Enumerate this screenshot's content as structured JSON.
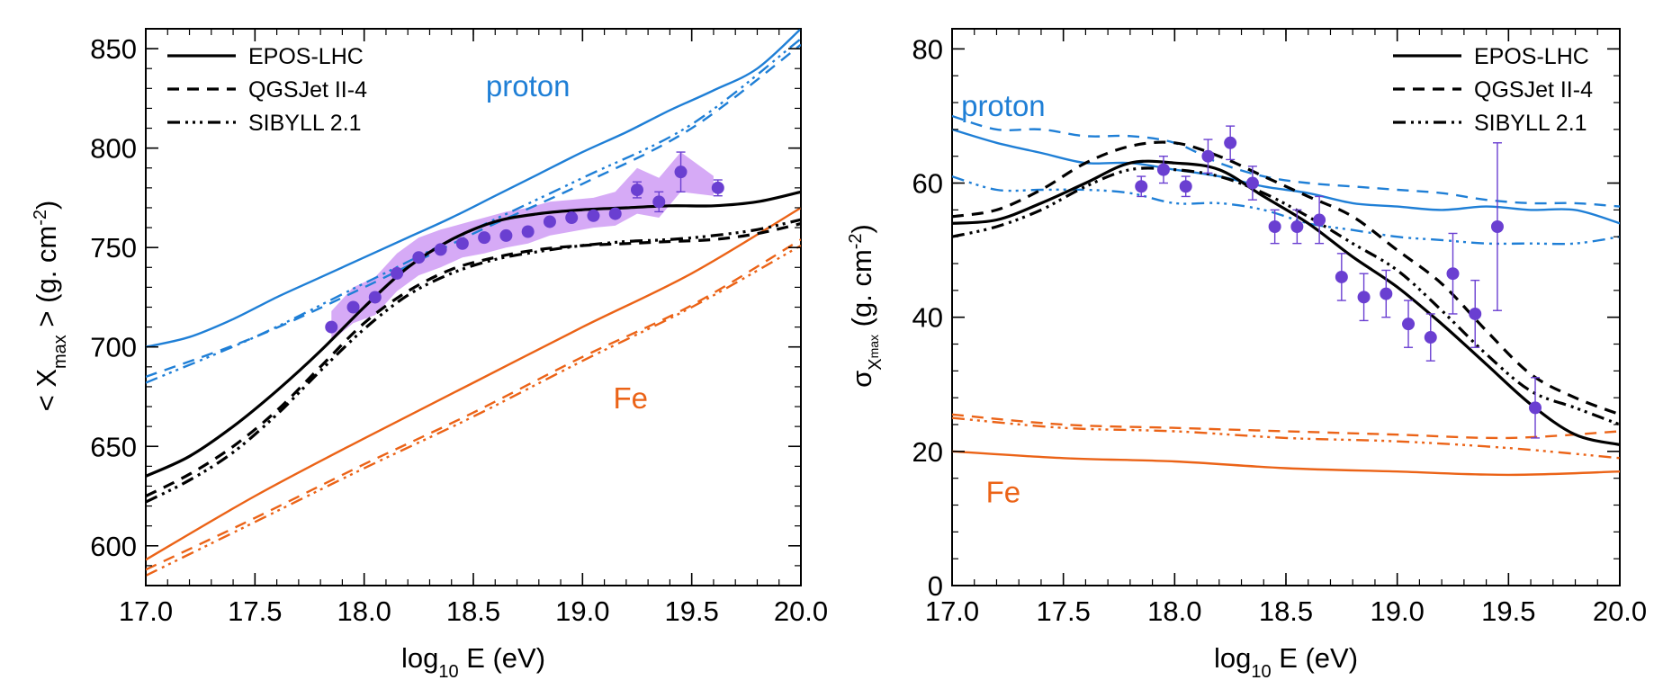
{
  "colors": {
    "proton": "#1f7fd6",
    "fe": "#eb6317",
    "data": "#6a3fd1",
    "band": "#cf9bf5",
    "model": "#000000"
  },
  "chart_data": [
    {
      "type": "line",
      "name": "mean-xmax",
      "xlabel": {
        "pre": "log",
        "sub": "10",
        "post": " E (eV)"
      },
      "ylabel": {
        "pre": "< X",
        "sub": "max",
        "mid": " > (g. cm",
        "sup": "-2",
        "post": ")"
      },
      "xlim": [
        17.0,
        20.0
      ],
      "ylim": [
        580,
        860
      ],
      "xticks": [
        17.0,
        17.5,
        18.0,
        18.5,
        19.0,
        19.5,
        20.0
      ],
      "xtick_labels": [
        "17.0",
        "17.5",
        "18.0",
        "18.5",
        "19.0",
        "19.5",
        "20.0"
      ],
      "yticks": [
        600,
        650,
        700,
        750,
        800,
        850
      ],
      "ytick_labels": [
        "600",
        "650",
        "700",
        "750",
        "800",
        "850"
      ],
      "legend": {
        "position": "top-left",
        "entries": [
          {
            "label": "EPOS-LHC",
            "style": "solid"
          },
          {
            "label": "QGSJet II-4",
            "style": "dashed"
          },
          {
            "label": "SIBYLL 2.1",
            "style": "dashdotdotdot"
          }
        ]
      },
      "annotations": [
        {
          "text": "proton",
          "x": 18.75,
          "y": 826,
          "color": "proton"
        },
        {
          "text": "Fe",
          "x": 19.22,
          "y": 669,
          "color": "fe"
        }
      ],
      "series": [
        {
          "name": "proton EPOS-LHC",
          "color": "proton",
          "style": "solid",
          "x": [
            17.0,
            17.2,
            17.4,
            17.6,
            17.8,
            18.0,
            18.2,
            18.4,
            18.6,
            18.8,
            19.0,
            19.2,
            19.4,
            19.6,
            19.8,
            20.0
          ],
          "y": [
            700,
            705,
            714,
            725,
            735,
            745,
            755,
            765,
            776,
            787,
            798,
            808,
            819,
            829,
            840,
            860
          ]
        },
        {
          "name": "proton QGSJet II-4",
          "color": "proton",
          "style": "dashed",
          "x": [
            17.0,
            17.5,
            18.0,
            18.5,
            19.0,
            19.5,
            20.0
          ],
          "y": [
            685,
            705,
            730,
            757,
            782,
            810,
            852
          ]
        },
        {
          "name": "proton SIBYLL 2.1",
          "color": "proton",
          "style": "dashdotdotdot",
          "x": [
            17.0,
            17.5,
            18.0,
            18.5,
            19.0,
            19.5,
            20.0
          ],
          "y": [
            682,
            705,
            732,
            759,
            785,
            812,
            855
          ]
        },
        {
          "name": "Fe EPOS-LHC",
          "color": "fe",
          "style": "solid",
          "x": [
            17.0,
            17.5,
            18.0,
            18.5,
            19.0,
            19.5,
            20.0
          ],
          "y": [
            593,
            625,
            654,
            682,
            710,
            737,
            770
          ]
        },
        {
          "name": "Fe QGSJet II-4",
          "color": "fe",
          "style": "dashed",
          "x": [
            17.0,
            17.5,
            18.0,
            18.5,
            19.0,
            19.5,
            20.0
          ],
          "y": [
            588,
            614,
            641,
            667,
            695,
            721,
            754
          ]
        },
        {
          "name": "Fe SIBYLL 2.1",
          "color": "fe",
          "style": "dashdotdotdot",
          "x": [
            17.0,
            17.5,
            18.0,
            18.5,
            19.0,
            19.5,
            20.0
          ],
          "y": [
            585,
            612,
            639,
            665,
            693,
            720,
            751
          ]
        },
        {
          "name": "EPOS-LHC",
          "color": "model",
          "style": "solid",
          "x": [
            17.0,
            17.2,
            17.4,
            17.6,
            17.8,
            18.0,
            18.2,
            18.4,
            18.6,
            18.8,
            19.0,
            19.2,
            19.4,
            19.6,
            19.8,
            20.0
          ],
          "y": [
            635,
            645,
            660,
            678,
            698,
            720,
            740,
            754,
            763,
            767,
            769,
            770,
            771,
            771,
            773,
            778
          ]
        },
        {
          "name": "QGSJet II-4",
          "color": "model",
          "style": "dashed",
          "x": [
            17.0,
            17.2,
            17.4,
            17.6,
            17.8,
            18.0,
            18.2,
            18.4,
            18.6,
            18.8,
            19.0,
            19.2,
            19.4,
            19.6,
            19.8,
            20.0
          ],
          "y": [
            625,
            636,
            650,
            668,
            690,
            712,
            728,
            739,
            745,
            749,
            751,
            752,
            753,
            754,
            757,
            762
          ]
        },
        {
          "name": "SIBYLL 2.1",
          "color": "model",
          "style": "dashdotdotdot",
          "x": [
            17.0,
            17.2,
            17.4,
            17.6,
            17.8,
            18.0,
            18.2,
            18.4,
            18.6,
            18.8,
            19.0,
            19.2,
            19.4,
            19.6,
            19.8,
            20.0
          ],
          "y": [
            622,
            633,
            647,
            666,
            688,
            709,
            726,
            737,
            744,
            748,
            751,
            753,
            754,
            756,
            759,
            764
          ]
        }
      ],
      "band": {
        "x": [
          17.85,
          17.95,
          18.05,
          18.15,
          18.25,
          18.35,
          18.45,
          18.55,
          18.65,
          18.75,
          18.85,
          18.95,
          19.05,
          19.15,
          19.25,
          19.35,
          19.45,
          19.6
        ],
        "lower": [
          703,
          712,
          716,
          728,
          736,
          740,
          745,
          747,
          750,
          752,
          756,
          758,
          760,
          761,
          767,
          765,
          778,
          776
        ],
        "upper": [
          718,
          730,
          735,
          747,
          755,
          759,
          762,
          765,
          768,
          770,
          773,
          774,
          775,
          778,
          790,
          785,
          798,
          786
        ]
      },
      "data_points": {
        "x": [
          17.85,
          17.95,
          18.05,
          18.15,
          18.25,
          18.35,
          18.45,
          18.55,
          18.65,
          18.75,
          18.85,
          18.95,
          19.05,
          19.15,
          19.25,
          19.35,
          19.45,
          19.62
        ],
        "y": [
          710,
          720,
          725,
          737,
          745,
          749,
          752,
          755,
          756,
          758,
          763,
          765,
          766,
          767,
          779,
          773,
          788,
          780
        ],
        "err": [
          1.5,
          1.5,
          1.5,
          1.5,
          1.5,
          1.5,
          1.5,
          1.5,
          1.5,
          1.5,
          1.5,
          1.5,
          2,
          2,
          4,
          5,
          10,
          4
        ]
      }
    },
    {
      "type": "line",
      "name": "sigma-xmax",
      "xlabel": {
        "pre": "log",
        "sub": "10",
        "post": " E (eV)"
      },
      "ylabel": {
        "pre": "σ",
        "sub": "X",
        "subsub": "max",
        "mid": " (g. cm",
        "sup": "-2",
        "post": ")"
      },
      "xlim": [
        17.0,
        20.0
      ],
      "ylim": [
        0,
        83
      ],
      "xticks": [
        17.0,
        17.5,
        18.0,
        18.5,
        19.0,
        19.5,
        20.0
      ],
      "xtick_labels": [
        "17.0",
        "17.5",
        "18.0",
        "18.5",
        "19.0",
        "19.5",
        "20.0"
      ],
      "yticks": [
        0,
        20,
        40,
        60,
        80
      ],
      "ytick_labels": [
        "0",
        "20",
        "40",
        "60",
        "80"
      ],
      "legend": {
        "position": "top-right",
        "entries": [
          {
            "label": "EPOS-LHC",
            "style": "solid"
          },
          {
            "label": "QGSJet II-4",
            "style": "dashed"
          },
          {
            "label": "SIBYLL 2.1",
            "style": "dashdotdotdot"
          }
        ]
      },
      "annotations": [
        {
          "text": "proton",
          "x": 17.23,
          "y": 70,
          "color": "proton"
        },
        {
          "text": "Fe",
          "x": 17.23,
          "y": 12.4,
          "color": "fe"
        }
      ],
      "series": [
        {
          "name": "proton EPOS-LHC",
          "color": "proton",
          "style": "solid",
          "x": [
            17.0,
            17.2,
            17.4,
            17.6,
            17.8,
            18.0,
            18.2,
            18.4,
            18.6,
            18.8,
            19.0,
            19.2,
            19.4,
            19.6,
            19.8,
            20.0
          ],
          "y": [
            68,
            66,
            64.5,
            63,
            63,
            62,
            61,
            59.5,
            58.5,
            57,
            56.5,
            56,
            56.5,
            56,
            56,
            54
          ]
        },
        {
          "name": "proton QGSJet II-4",
          "color": "proton",
          "style": "dashed",
          "x": [
            17.0,
            17.2,
            17.4,
            17.6,
            17.8,
            18.0,
            18.2,
            18.4,
            18.6,
            18.8,
            19.0,
            19.2,
            19.4,
            19.6,
            19.8,
            20.0
          ],
          "y": [
            70,
            68,
            68,
            67,
            67,
            66,
            63,
            61,
            60,
            59.5,
            59,
            58.5,
            57.5,
            57,
            57,
            56.5
          ]
        },
        {
          "name": "proton SIBYLL 2.1",
          "color": "proton",
          "style": "dashdotdotdot",
          "x": [
            17.0,
            17.2,
            17.4,
            17.6,
            17.8,
            18.0,
            18.2,
            18.4,
            18.6,
            18.8,
            19.0,
            19.2,
            19.4,
            19.6,
            19.8,
            20.0
          ],
          "y": [
            61,
            59,
            59,
            59,
            58.5,
            57,
            57,
            56,
            54,
            53,
            52,
            51.5,
            51,
            51,
            51,
            52
          ]
        },
        {
          "name": "Fe EPOS-LHC",
          "color": "fe",
          "style": "solid",
          "x": [
            17.0,
            17.5,
            18.0,
            18.5,
            19.0,
            19.5,
            20.0
          ],
          "y": [
            20,
            19,
            18.5,
            17.5,
            17,
            16.5,
            17
          ]
        },
        {
          "name": "Fe QGSJet II-4",
          "color": "fe",
          "style": "dashed",
          "x": [
            17.0,
            17.5,
            18.0,
            18.5,
            19.0,
            19.5,
            20.0
          ],
          "y": [
            25.5,
            24,
            23.5,
            23,
            22.5,
            22,
            23
          ]
        },
        {
          "name": "Fe SIBYLL 2.1",
          "color": "fe",
          "style": "dashdotdotdot",
          "x": [
            17.0,
            17.5,
            18.0,
            18.5,
            19.0,
            19.5,
            20.0
          ],
          "y": [
            25,
            23.5,
            23,
            22,
            21.5,
            20.5,
            19
          ]
        },
        {
          "name": "EPOS-LHC",
          "color": "model",
          "style": "solid",
          "x": [
            17.0,
            17.2,
            17.4,
            17.6,
            17.8,
            18.0,
            18.2,
            18.4,
            18.6,
            18.8,
            19.0,
            19.2,
            19.4,
            19.6,
            19.8,
            20.0
          ],
          "y": [
            54,
            54.5,
            57,
            60,
            63,
            63,
            62,
            58,
            54,
            49,
            44.5,
            39,
            33,
            27,
            22.5,
            21
          ]
        },
        {
          "name": "QGSJet II-4",
          "color": "model",
          "style": "dashed",
          "x": [
            17.0,
            17.2,
            17.4,
            17.6,
            17.8,
            18.0,
            18.2,
            18.4,
            18.6,
            18.8,
            19.0,
            19.2,
            19.4,
            19.6,
            19.8,
            20.0
          ],
          "y": [
            55,
            56,
            59,
            63,
            65.5,
            66,
            64,
            61,
            58,
            55,
            50,
            45,
            38,
            31.5,
            28,
            25.5
          ]
        },
        {
          "name": "SIBYLL 2.1",
          "color": "model",
          "style": "dashdotdotdot",
          "x": [
            17.0,
            17.2,
            17.4,
            17.6,
            17.8,
            18.0,
            18.2,
            18.4,
            18.6,
            18.8,
            19.0,
            19.2,
            19.4,
            19.6,
            19.8,
            20.0
          ],
          "y": [
            52,
            53.5,
            56,
            59.5,
            62,
            62,
            61,
            58.5,
            55,
            51,
            47,
            41,
            34.5,
            29,
            26.5,
            24
          ]
        }
      ],
      "data_points": {
        "x": [
          17.85,
          17.95,
          18.05,
          18.15,
          18.25,
          18.35,
          18.45,
          18.55,
          18.65,
          18.75,
          18.85,
          18.95,
          19.05,
          19.15,
          19.25,
          19.35,
          19.45,
          19.62
        ],
        "y": [
          59.5,
          62,
          59.5,
          64,
          66,
          60,
          53.5,
          53.5,
          54.5,
          46,
          43,
          43.5,
          39,
          37,
          46.5,
          40.5,
          53.5,
          26.5
        ],
        "err": [
          1.5,
          2,
          1.5,
          2.5,
          2.5,
          2.5,
          2.5,
          2.5,
          3.5,
          3.5,
          3.5,
          3.5,
          3.5,
          3.5,
          6,
          5,
          12.5,
          4.5
        ]
      }
    }
  ]
}
